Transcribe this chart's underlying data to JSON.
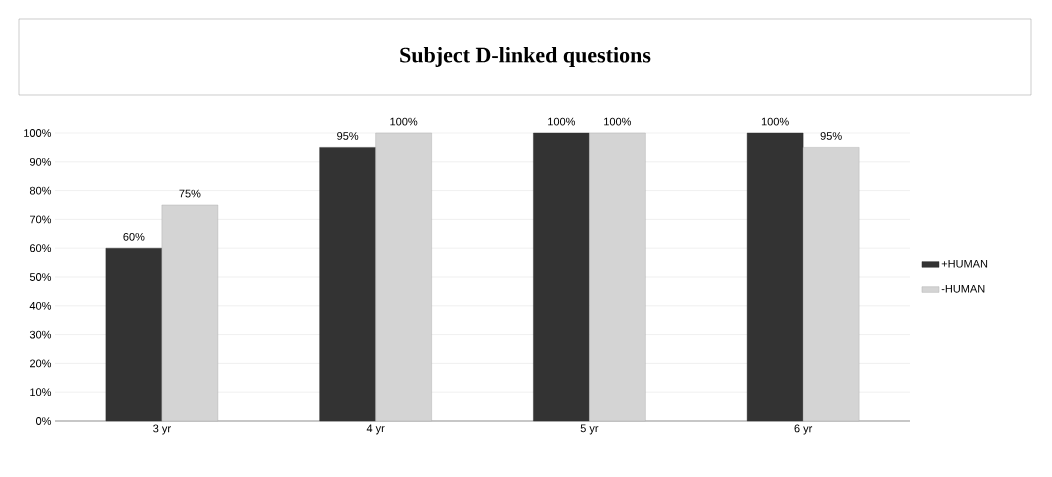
{
  "chart_data": {
    "type": "bar",
    "title": "Subject D-linked questions",
    "categories": [
      "3 yr",
      "4 yr",
      "5 yr",
      "6 yr"
    ],
    "series": [
      {
        "name": "+HUMAN",
        "color": "#333333",
        "values": [
          60,
          95,
          100,
          100
        ],
        "value_labels": [
          "60%",
          "95%",
          "100%",
          "100%"
        ]
      },
      {
        "name": "-HUMAN",
        "color": "#d4d4d4",
        "values": [
          75,
          100,
          100,
          95
        ],
        "value_labels": [
          "75%",
          "100%",
          "100%",
          "95%"
        ]
      }
    ],
    "ylim": [
      0,
      100
    ],
    "yticks": [
      {
        "value": 0,
        "label": "0%"
      },
      {
        "value": 10,
        "label": "10%"
      },
      {
        "value": 20,
        "label": "20%"
      },
      {
        "value": 30,
        "label": "30%"
      },
      {
        "value": 40,
        "label": "40%"
      },
      {
        "value": 50,
        "label": "50%"
      },
      {
        "value": 60,
        "label": "60%"
      },
      {
        "value": 70,
        "label": "70%"
      },
      {
        "value": 80,
        "label": "80%"
      },
      {
        "value": 90,
        "label": "90%"
      },
      {
        "value": 100,
        "label": "100%"
      }
    ],
    "grid": "y",
    "legend": "right"
  }
}
